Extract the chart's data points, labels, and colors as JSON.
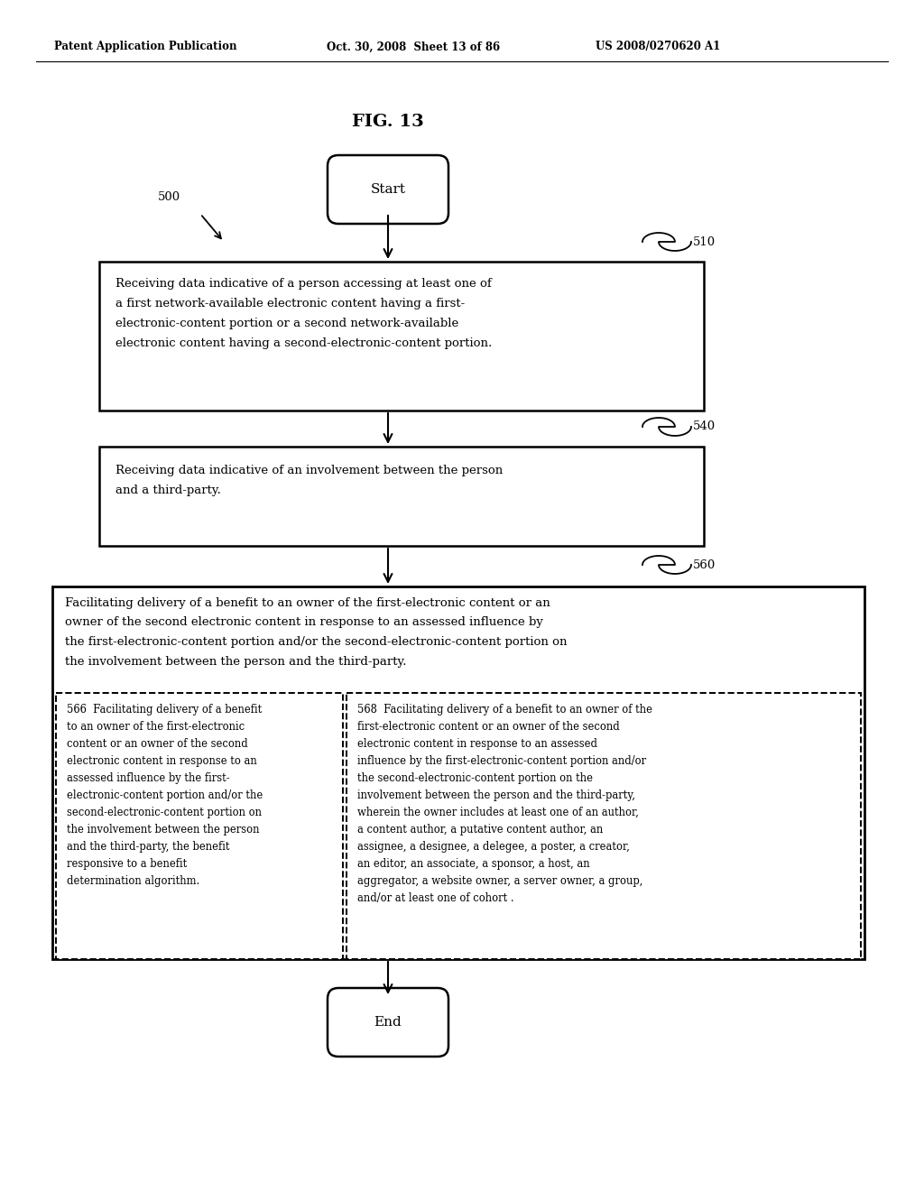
{
  "header_left": "Patent Application Publication",
  "header_mid": "Oct. 30, 2008  Sheet 13 of 86",
  "header_right": "US 2008/0270620 A1",
  "fig_title": "FIG. 13",
  "label_500": "500",
  "label_510": "510",
  "label_540": "540",
  "label_560": "560",
  "label_566": "566",
  "label_568": "568",
  "start_text": "Start",
  "end_text": "End",
  "box510_text": "Receiving data indicative of a person accessing at least one of\na first network-available electronic content having a first-\nelectronic-content portion or a second network-available\nelectronic content having a second-electronic-content portion.",
  "box540_text": "Receiving data indicative of an involvement between the person\nand a third-party.",
  "box560_header": "Facilitating delivery of a benefit to an owner of the first-electronic content or an\nowner of the second electronic content in response to an assessed influence by\nthe first-electronic-content portion and/or the second-electronic-content portion on\nthe involvement between the person and the third-party.",
  "box566_text": "566  Facilitating delivery of a benefit\nto an owner of the first-electronic\ncontent or an owner of the second\nelectronic content in response to an\nassessed influence by the first-\nelectronic-content portion and/or the\nsecond-electronic-content portion on\nthe involvement between the person\nand the third-party, the benefit\nresponsive to a benefit\ndetermination algorithm.",
  "box568_text": "568  Facilitating delivery of a benefit to an owner of the\nfirst-electronic content or an owner of the second\nelectronic content in response to an assessed\ninfluence by the first-electronic-content portion and/or\nthe second-electronic-content portion on the\ninvolvement between the person and the third-party,\nwherein the owner includes at least one of an author,\na content author, a putative content author, an\nassignee, a designee, a delegee, a poster, a creator,\nan editor, an associate, a sponsor, a host, an\naggregator, a website owner, a server owner, a group,\nand/or at least one of cohort .",
  "bg_color": "#ffffff",
  "text_color": "#000000"
}
